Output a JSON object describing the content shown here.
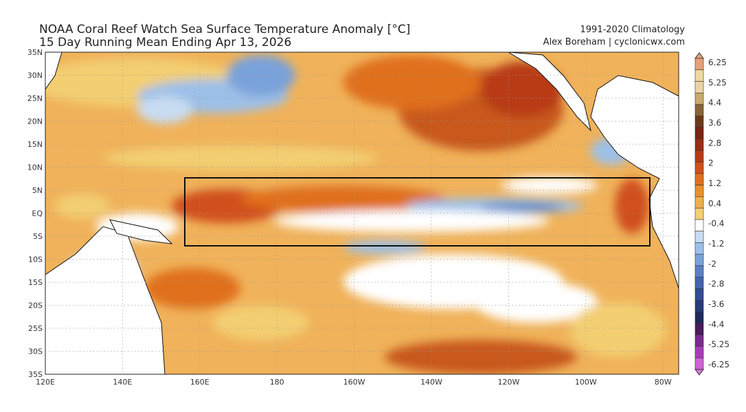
{
  "header": {
    "title_line1": "NOAA Coral Reef Watch Sea Surface Temperature Anomaly [°C]",
    "title_line2": "15 Day Running Mean Ending Apr 13, 2026",
    "climatology": "1991-2020 Climatology",
    "author": "Alex Boreham | cyclonicwx.com"
  },
  "axes": {
    "lat_labels": [
      "35N",
      "30N",
      "25N",
      "20N",
      "15N",
      "10N",
      "5N",
      "EQ",
      "5S",
      "10S",
      "15S",
      "20S",
      "25S",
      "30S",
      "35S"
    ],
    "lon_labels": [
      "120E",
      "140E",
      "160E",
      "180",
      "160W",
      "140W",
      "120W",
      "100W",
      "80W"
    ]
  },
  "colorbar": {
    "labels": [
      "6.25",
      "5.25",
      "4.4",
      "3.6",
      "2.8",
      "2",
      "1.2",
      "0.4",
      "-0.4",
      "-1.2",
      "-2",
      "-2.8",
      "-3.6",
      "-4.4",
      "-5.25",
      "-6.25"
    ],
    "colors": [
      "#e6a07a",
      "#f0d9a0",
      "#ecd4a6",
      "#c9a96e",
      "#8a6436",
      "#6b3a1a",
      "#7a2412",
      "#9a2d12",
      "#b83a14",
      "#d0501a",
      "#e0701e",
      "#ea902a",
      "#efb04a",
      "#f3cf72",
      "#ffffff",
      "#c8dcf2",
      "#9cc0e8",
      "#7aa2da",
      "#5a80c4",
      "#4464ae",
      "#344c96",
      "#283a7c",
      "#1e2a5e",
      "#4a1a5a",
      "#7a2a8e",
      "#a83cb8",
      "#d062d6"
    ],
    "arrow_top": "#e8a07a",
    "arrow_bottom": "#d878dc"
  },
  "region_box": {
    "lon_range": [
      "160E",
      "84W"
    ],
    "lat_range": [
      "8N",
      "7S"
    ]
  }
}
